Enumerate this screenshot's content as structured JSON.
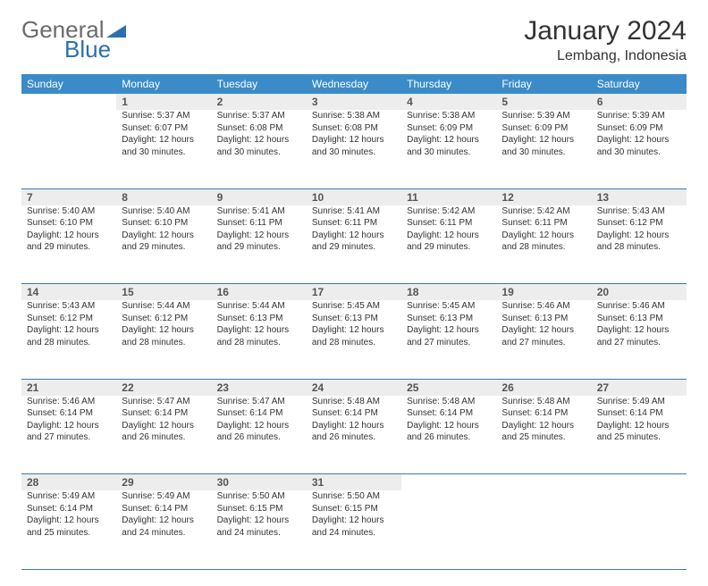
{
  "logo": {
    "part1": "General",
    "part2": "Blue",
    "color1": "#6b6b6b",
    "color2": "#2a6fb0"
  },
  "title": "January 2024",
  "location": "Lembang, Indonesia",
  "header_bg": "#3b8bc8",
  "daynum_bg": "#ededed",
  "border_color": "#3b7aa8",
  "weekdays": [
    "Sunday",
    "Monday",
    "Tuesday",
    "Wednesday",
    "Thursday",
    "Friday",
    "Saturday"
  ],
  "weeks": [
    {
      "nums": [
        "",
        "1",
        "2",
        "3",
        "4",
        "5",
        "6"
      ],
      "cells": [
        null,
        {
          "sr": "Sunrise: 5:37 AM",
          "ss": "Sunset: 6:07 PM",
          "dl": "Daylight: 12 hours and 30 minutes."
        },
        {
          "sr": "Sunrise: 5:37 AM",
          "ss": "Sunset: 6:08 PM",
          "dl": "Daylight: 12 hours and 30 minutes."
        },
        {
          "sr": "Sunrise: 5:38 AM",
          "ss": "Sunset: 6:08 PM",
          "dl": "Daylight: 12 hours and 30 minutes."
        },
        {
          "sr": "Sunrise: 5:38 AM",
          "ss": "Sunset: 6:09 PM",
          "dl": "Daylight: 12 hours and 30 minutes."
        },
        {
          "sr": "Sunrise: 5:39 AM",
          "ss": "Sunset: 6:09 PM",
          "dl": "Daylight: 12 hours and 30 minutes."
        },
        {
          "sr": "Sunrise: 5:39 AM",
          "ss": "Sunset: 6:09 PM",
          "dl": "Daylight: 12 hours and 30 minutes."
        }
      ]
    },
    {
      "nums": [
        "7",
        "8",
        "9",
        "10",
        "11",
        "12",
        "13"
      ],
      "cells": [
        {
          "sr": "Sunrise: 5:40 AM",
          "ss": "Sunset: 6:10 PM",
          "dl": "Daylight: 12 hours and 29 minutes."
        },
        {
          "sr": "Sunrise: 5:40 AM",
          "ss": "Sunset: 6:10 PM",
          "dl": "Daylight: 12 hours and 29 minutes."
        },
        {
          "sr": "Sunrise: 5:41 AM",
          "ss": "Sunset: 6:11 PM",
          "dl": "Daylight: 12 hours and 29 minutes."
        },
        {
          "sr": "Sunrise: 5:41 AM",
          "ss": "Sunset: 6:11 PM",
          "dl": "Daylight: 12 hours and 29 minutes."
        },
        {
          "sr": "Sunrise: 5:42 AM",
          "ss": "Sunset: 6:11 PM",
          "dl": "Daylight: 12 hours and 29 minutes."
        },
        {
          "sr": "Sunrise: 5:42 AM",
          "ss": "Sunset: 6:11 PM",
          "dl": "Daylight: 12 hours and 28 minutes."
        },
        {
          "sr": "Sunrise: 5:43 AM",
          "ss": "Sunset: 6:12 PM",
          "dl": "Daylight: 12 hours and 28 minutes."
        }
      ]
    },
    {
      "nums": [
        "14",
        "15",
        "16",
        "17",
        "18",
        "19",
        "20"
      ],
      "cells": [
        {
          "sr": "Sunrise: 5:43 AM",
          "ss": "Sunset: 6:12 PM",
          "dl": "Daylight: 12 hours and 28 minutes."
        },
        {
          "sr": "Sunrise: 5:44 AM",
          "ss": "Sunset: 6:12 PM",
          "dl": "Daylight: 12 hours and 28 minutes."
        },
        {
          "sr": "Sunrise: 5:44 AM",
          "ss": "Sunset: 6:13 PM",
          "dl": "Daylight: 12 hours and 28 minutes."
        },
        {
          "sr": "Sunrise: 5:45 AM",
          "ss": "Sunset: 6:13 PM",
          "dl": "Daylight: 12 hours and 28 minutes."
        },
        {
          "sr": "Sunrise: 5:45 AM",
          "ss": "Sunset: 6:13 PM",
          "dl": "Daylight: 12 hours and 27 minutes."
        },
        {
          "sr": "Sunrise: 5:46 AM",
          "ss": "Sunset: 6:13 PM",
          "dl": "Daylight: 12 hours and 27 minutes."
        },
        {
          "sr": "Sunrise: 5:46 AM",
          "ss": "Sunset: 6:13 PM",
          "dl": "Daylight: 12 hours and 27 minutes."
        }
      ]
    },
    {
      "nums": [
        "21",
        "22",
        "23",
        "24",
        "25",
        "26",
        "27"
      ],
      "cells": [
        {
          "sr": "Sunrise: 5:46 AM",
          "ss": "Sunset: 6:14 PM",
          "dl": "Daylight: 12 hours and 27 minutes."
        },
        {
          "sr": "Sunrise: 5:47 AM",
          "ss": "Sunset: 6:14 PM",
          "dl": "Daylight: 12 hours and 26 minutes."
        },
        {
          "sr": "Sunrise: 5:47 AM",
          "ss": "Sunset: 6:14 PM",
          "dl": "Daylight: 12 hours and 26 minutes."
        },
        {
          "sr": "Sunrise: 5:48 AM",
          "ss": "Sunset: 6:14 PM",
          "dl": "Daylight: 12 hours and 26 minutes."
        },
        {
          "sr": "Sunrise: 5:48 AM",
          "ss": "Sunset: 6:14 PM",
          "dl": "Daylight: 12 hours and 26 minutes."
        },
        {
          "sr": "Sunrise: 5:48 AM",
          "ss": "Sunset: 6:14 PM",
          "dl": "Daylight: 12 hours and 25 minutes."
        },
        {
          "sr": "Sunrise: 5:49 AM",
          "ss": "Sunset: 6:14 PM",
          "dl": "Daylight: 12 hours and 25 minutes."
        }
      ]
    },
    {
      "nums": [
        "28",
        "29",
        "30",
        "31",
        "",
        "",
        ""
      ],
      "cells": [
        {
          "sr": "Sunrise: 5:49 AM",
          "ss": "Sunset: 6:14 PM",
          "dl": "Daylight: 12 hours and 25 minutes."
        },
        {
          "sr": "Sunrise: 5:49 AM",
          "ss": "Sunset: 6:14 PM",
          "dl": "Daylight: 12 hours and 24 minutes."
        },
        {
          "sr": "Sunrise: 5:50 AM",
          "ss": "Sunset: 6:15 PM",
          "dl": "Daylight: 12 hours and 24 minutes."
        },
        {
          "sr": "Sunrise: 5:50 AM",
          "ss": "Sunset: 6:15 PM",
          "dl": "Daylight: 12 hours and 24 minutes."
        },
        null,
        null,
        null
      ]
    }
  ]
}
